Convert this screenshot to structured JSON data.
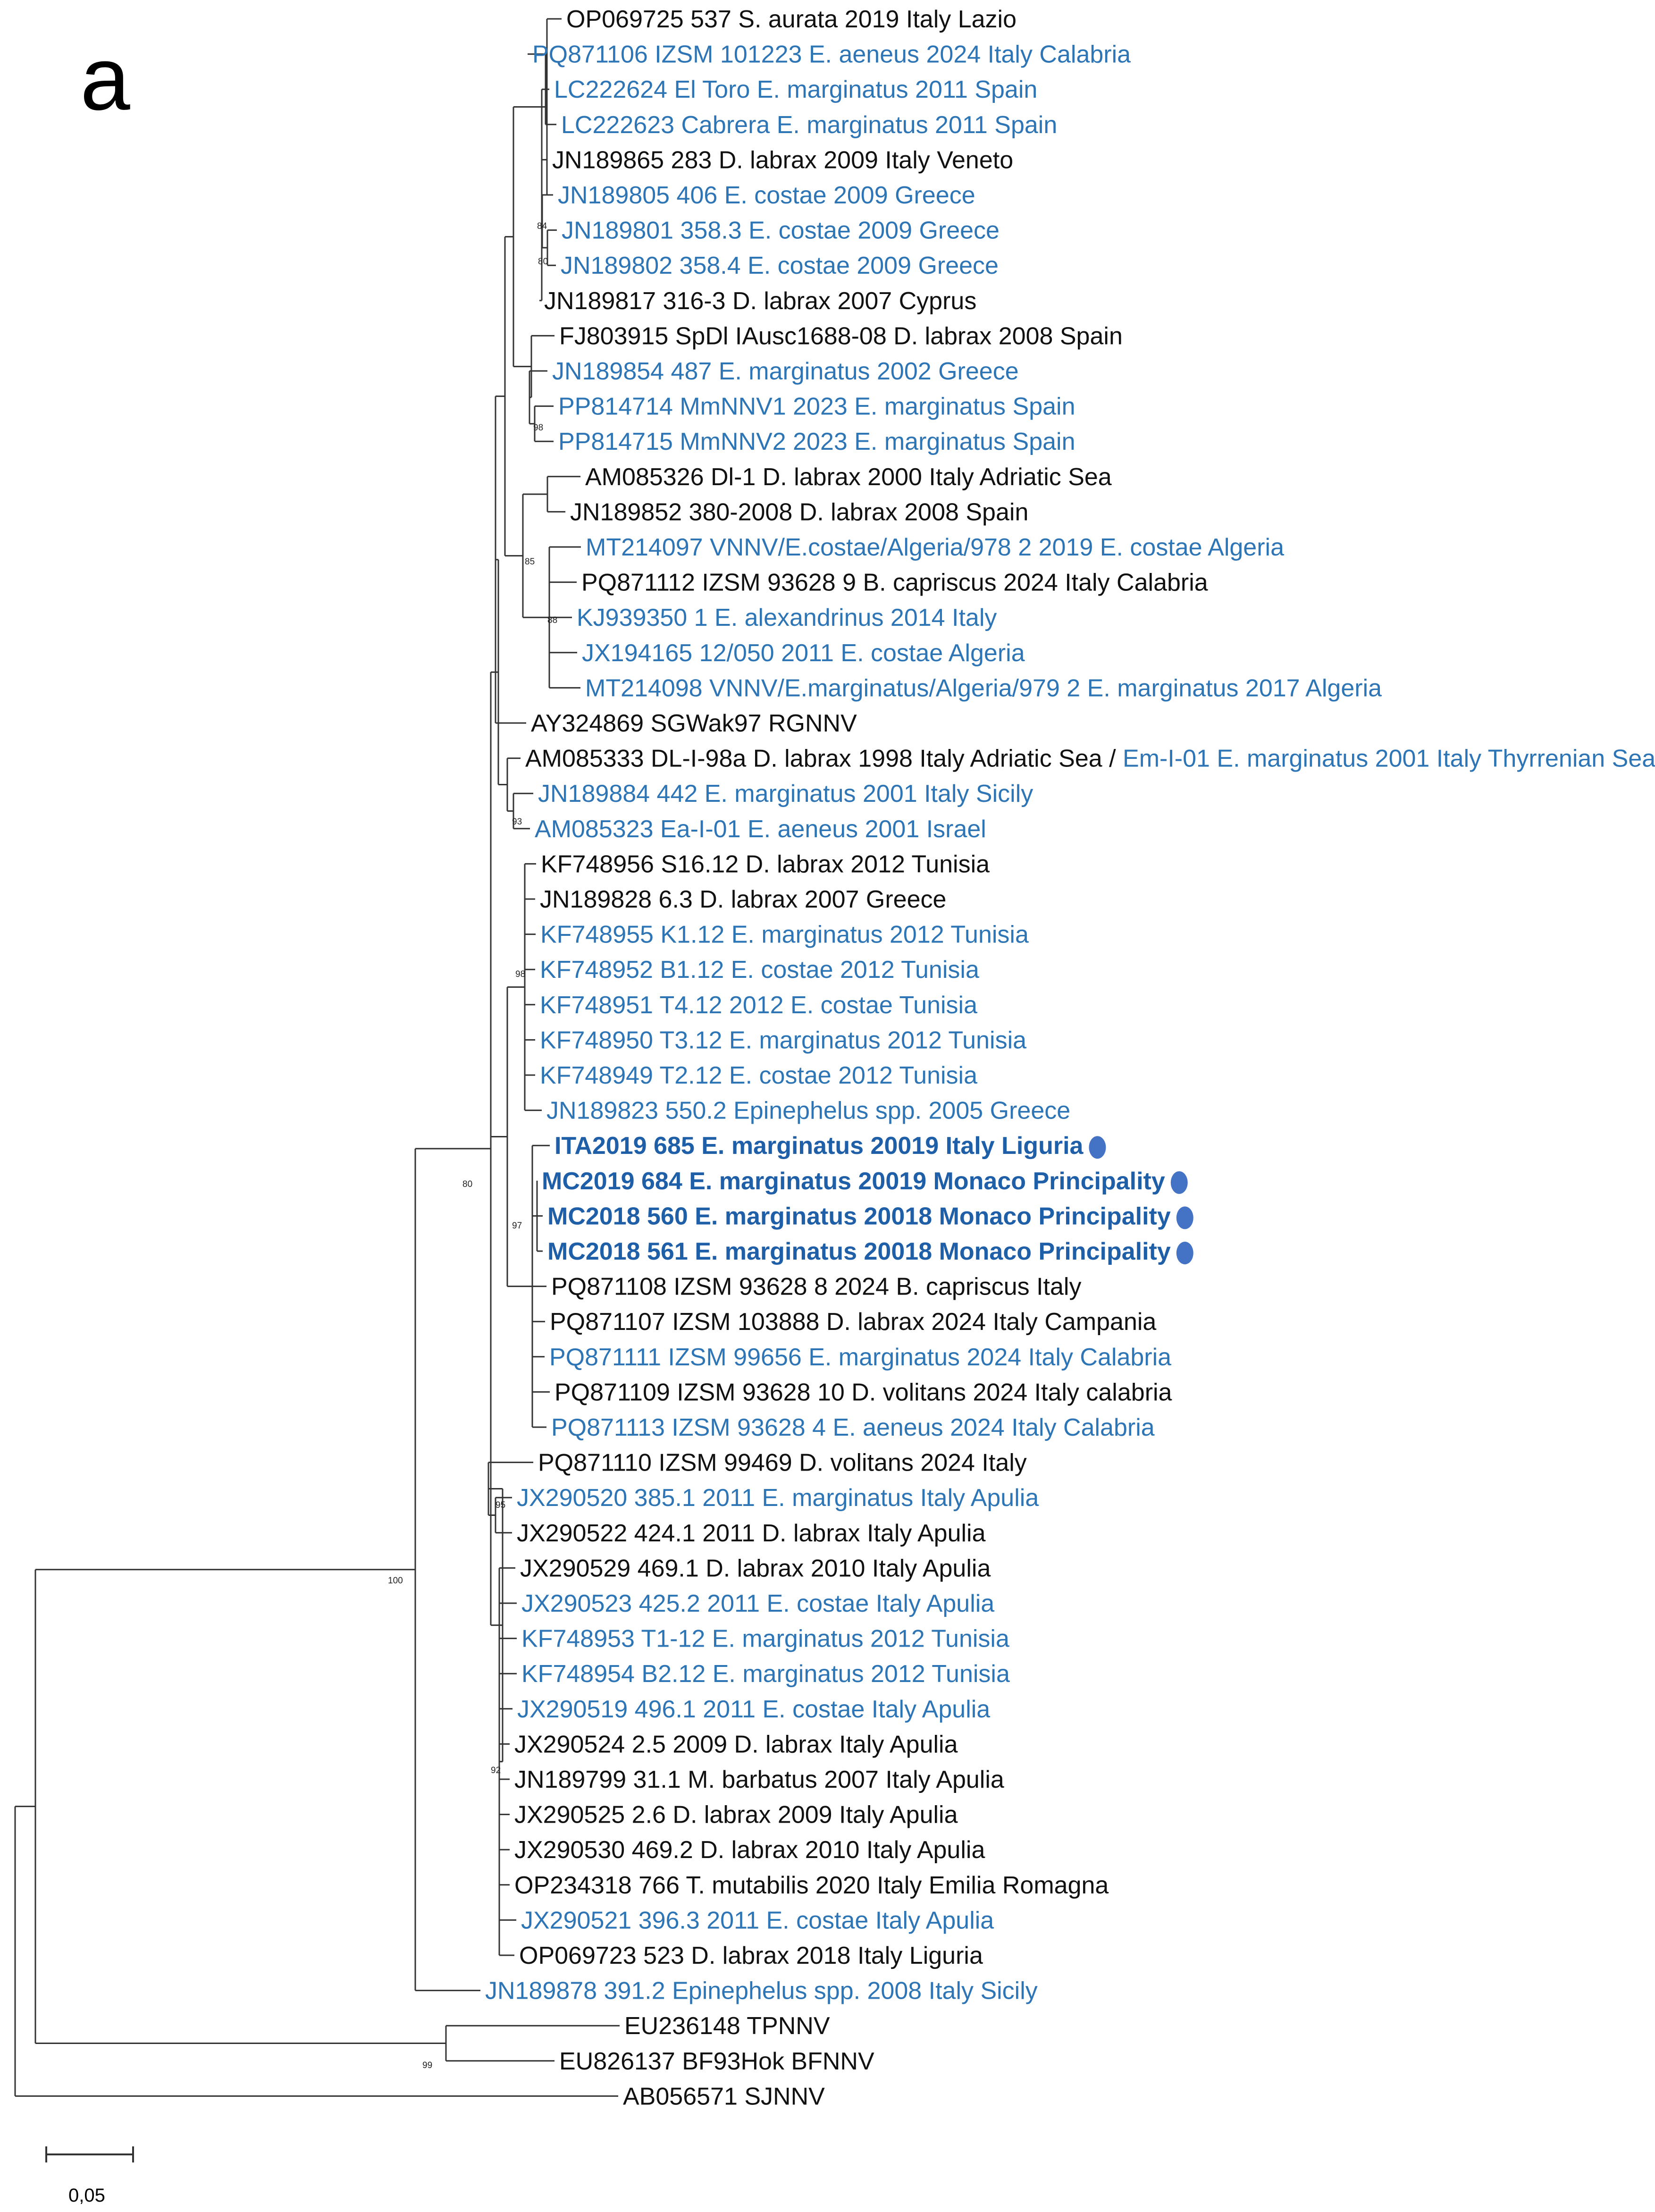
{
  "panel_label": "a",
  "colors": {
    "black": "#111111",
    "blue": "#2e75b6",
    "bold_blue": "#1f5fa8",
    "branch": "#333333",
    "marker": "#4472c4"
  },
  "scale_bar": {
    "label": "0,05"
  },
  "taxa": [
    {
      "label": "OP069725 537 S. aurata 2019 Italy Lazio",
      "color": "black"
    },
    {
      "label": "PQ871106 IZSM 101223 E. aeneus 2024 Italy Calabria",
      "color": "blue"
    },
    {
      "label": "LC222624 El Toro E. marginatus 2011 Spain",
      "color": "blue"
    },
    {
      "label": "LC222623 Cabrera E. marginatus 2011 Spain",
      "color": "blue"
    },
    {
      "label": "JN189865 283 D. labrax 2009 Italy Veneto",
      "color": "black"
    },
    {
      "label": "JN189805 406 E. costae 2009 Greece",
      "color": "blue"
    },
    {
      "label": "JN189801 358.3 E. costae 2009 Greece",
      "color": "blue"
    },
    {
      "label": "JN189802 358.4 E. costae 2009 Greece",
      "color": "blue"
    },
    {
      "label": "JN189817 316-3 D. labrax 2007 Cyprus",
      "color": "black"
    },
    {
      "label": "FJ803915 SpDl IAusc1688-08 D. labrax 2008 Spain",
      "color": "black"
    },
    {
      "label": "JN189854 487 E. marginatus 2002 Greece",
      "color": "blue"
    },
    {
      "label": "PP814714 MmNNV1 2023 E. marginatus Spain",
      "color": "blue"
    },
    {
      "label": "PP814715 MmNNV2 2023 E. marginatus Spain",
      "color": "blue"
    },
    {
      "label": "AM085326 Dl-1 D. labrax 2000 Italy Adriatic Sea",
      "color": "black"
    },
    {
      "label": "JN189852 380-2008 D. labrax 2008 Spain",
      "color": "black"
    },
    {
      "label": "MT214097 VNNV/E.costae/Algeria/978 2 2019 E. costae Algeria",
      "color": "blue"
    },
    {
      "label": "PQ871112 IZSM 93628 9 B. capriscus 2024 Italy Calabria",
      "color": "black"
    },
    {
      "label": "KJ939350 1 E. alexandrinus 2014 Italy",
      "color": "blue"
    },
    {
      "label": "JX194165 12/050 2011 E. costae Algeria",
      "color": "blue"
    },
    {
      "label": "MT214098 VNNV/E.marginatus/Algeria/979 2 E. marginatus 2017 Algeria",
      "color": "blue"
    },
    {
      "label": "AY324869 SGWak97 RGNNV",
      "color": "black"
    },
    {
      "label": "AM085333 DL-I-98a D. labrax 1998 Italy Adriatic Sea / ",
      "label2": "Em-I-01 E. marginatus 2001 Italy Thyrrenian Sea",
      "color": "black",
      "color2": "blue"
    },
    {
      "label": "JN189884 442 E. marginatus 2001 Italy Sicily",
      "color": "blue"
    },
    {
      "label": "AM085323 Ea-I-01 E. aeneus 2001 Israel",
      "color": "blue"
    },
    {
      "label": "KF748956 S16.12 D. labrax 2012 Tunisia",
      "color": "black"
    },
    {
      "label": "JN189828 6.3 D. labrax 2007 Greece",
      "color": "black"
    },
    {
      "label": "KF748955 K1.12 E. marginatus 2012 Tunisia",
      "color": "blue"
    },
    {
      "label": "KF748952 B1.12 E. costae 2012 Tunisia",
      "color": "blue"
    },
    {
      "label": "KF748951 T4.12 2012 E. costae Tunisia",
      "color": "blue"
    },
    {
      "label": "KF748950 T3.12 E. marginatus 2012 Tunisia",
      "color": "blue"
    },
    {
      "label": "KF748949 T2.12 E. costae 2012 Tunisia",
      "color": "blue"
    },
    {
      "label": "JN189823 550.2 Epinephelus spp. 2005 Greece",
      "color": "blue"
    },
    {
      "label": "ITA2019 685 E. marginatus 20019 Italy Liguria",
      "color": "bold_blue",
      "bold": true,
      "marker": true
    },
    {
      "label": "MC2019 684 E. marginatus 20019 Monaco Principality",
      "color": "bold_blue",
      "bold": true,
      "marker": true
    },
    {
      "label": "MC2018 560 E. marginatus 20018 Monaco Principality",
      "color": "bold_blue",
      "bold": true,
      "marker": true
    },
    {
      "label": "MC2018 561 E. marginatus 20018 Monaco Principality",
      "color": "bold_blue",
      "bold": true,
      "marker": true
    },
    {
      "label": "PQ871108 IZSM 93628 8 2024 B. capriscus Italy",
      "color": "black"
    },
    {
      "label": "PQ871107 IZSM 103888 D. labrax 2024 Italy Campania",
      "color": "black"
    },
    {
      "label": "PQ871111 IZSM 99656 E. marginatus 2024 Italy Calabria",
      "color": "blue"
    },
    {
      "label": "PQ871109 IZSM 93628 10 D. volitans 2024 Italy calabria",
      "color": "black"
    },
    {
      "label": "PQ871113 IZSM 93628 4 E. aeneus 2024 Italy Calabria",
      "color": "blue"
    },
    {
      "label": "PQ871110 IZSM 99469 D. volitans 2024 Italy",
      "color": "black"
    },
    {
      "label": "JX290520 385.1 2011 E. marginatus Italy Apulia",
      "color": "blue"
    },
    {
      "label": "JX290522 424.1 2011 D. labrax Italy Apulia",
      "color": "black"
    },
    {
      "label": "JX290529 469.1 D. labrax 2010 Italy Apulia",
      "color": "black"
    },
    {
      "label": "JX290523 425.2 2011 E. costae Italy Apulia",
      "color": "blue"
    },
    {
      "label": "KF748953 T1-12 E. marginatus 2012 Tunisia",
      "color": "blue"
    },
    {
      "label": "KF748954 B2.12 E. marginatus 2012 Tunisia",
      "color": "blue"
    },
    {
      "label": "JX290519 496.1 2011 E. costae Italy Apulia",
      "color": "blue"
    },
    {
      "label": "JX290524 2.5 2009 D. labrax Italy Apulia",
      "color": "black"
    },
    {
      "label": "JN189799 31.1 M. barbatus 2007 Italy Apulia",
      "color": "black"
    },
    {
      "label": "JX290525 2.6 D. labrax 2009 Italy Apulia",
      "color": "black"
    },
    {
      "label": "JX290530 469.2 D. labrax 2010 Italy Apulia",
      "color": "black"
    },
    {
      "label": "OP234318 766 T. mutabilis 2020 Italy Emilia Romagna",
      "color": "black"
    },
    {
      "label": "JX290521 396.3 2011 E. costae Italy Apulia",
      "color": "blue"
    },
    {
      "label": "OP069723 523 D. labrax 2018 Italy Liguria",
      "color": "black"
    },
    {
      "label": "JN189878 391.2 Epinephelus spp. 2008 Italy Sicily",
      "color": "blue"
    },
    {
      "label": "EU236148 TPNNV",
      "color": "black"
    },
    {
      "label": "EU826137 BF93Hok BFNNV",
      "color": "black"
    },
    {
      "label": "AB056571 SJNNV",
      "color": "black"
    }
  ],
  "bootstrap": [
    "84",
    "80",
    "98",
    "85",
    "88",
    "93",
    "98",
    "80",
    "97",
    "95",
    "92",
    "100",
    "99"
  ]
}
